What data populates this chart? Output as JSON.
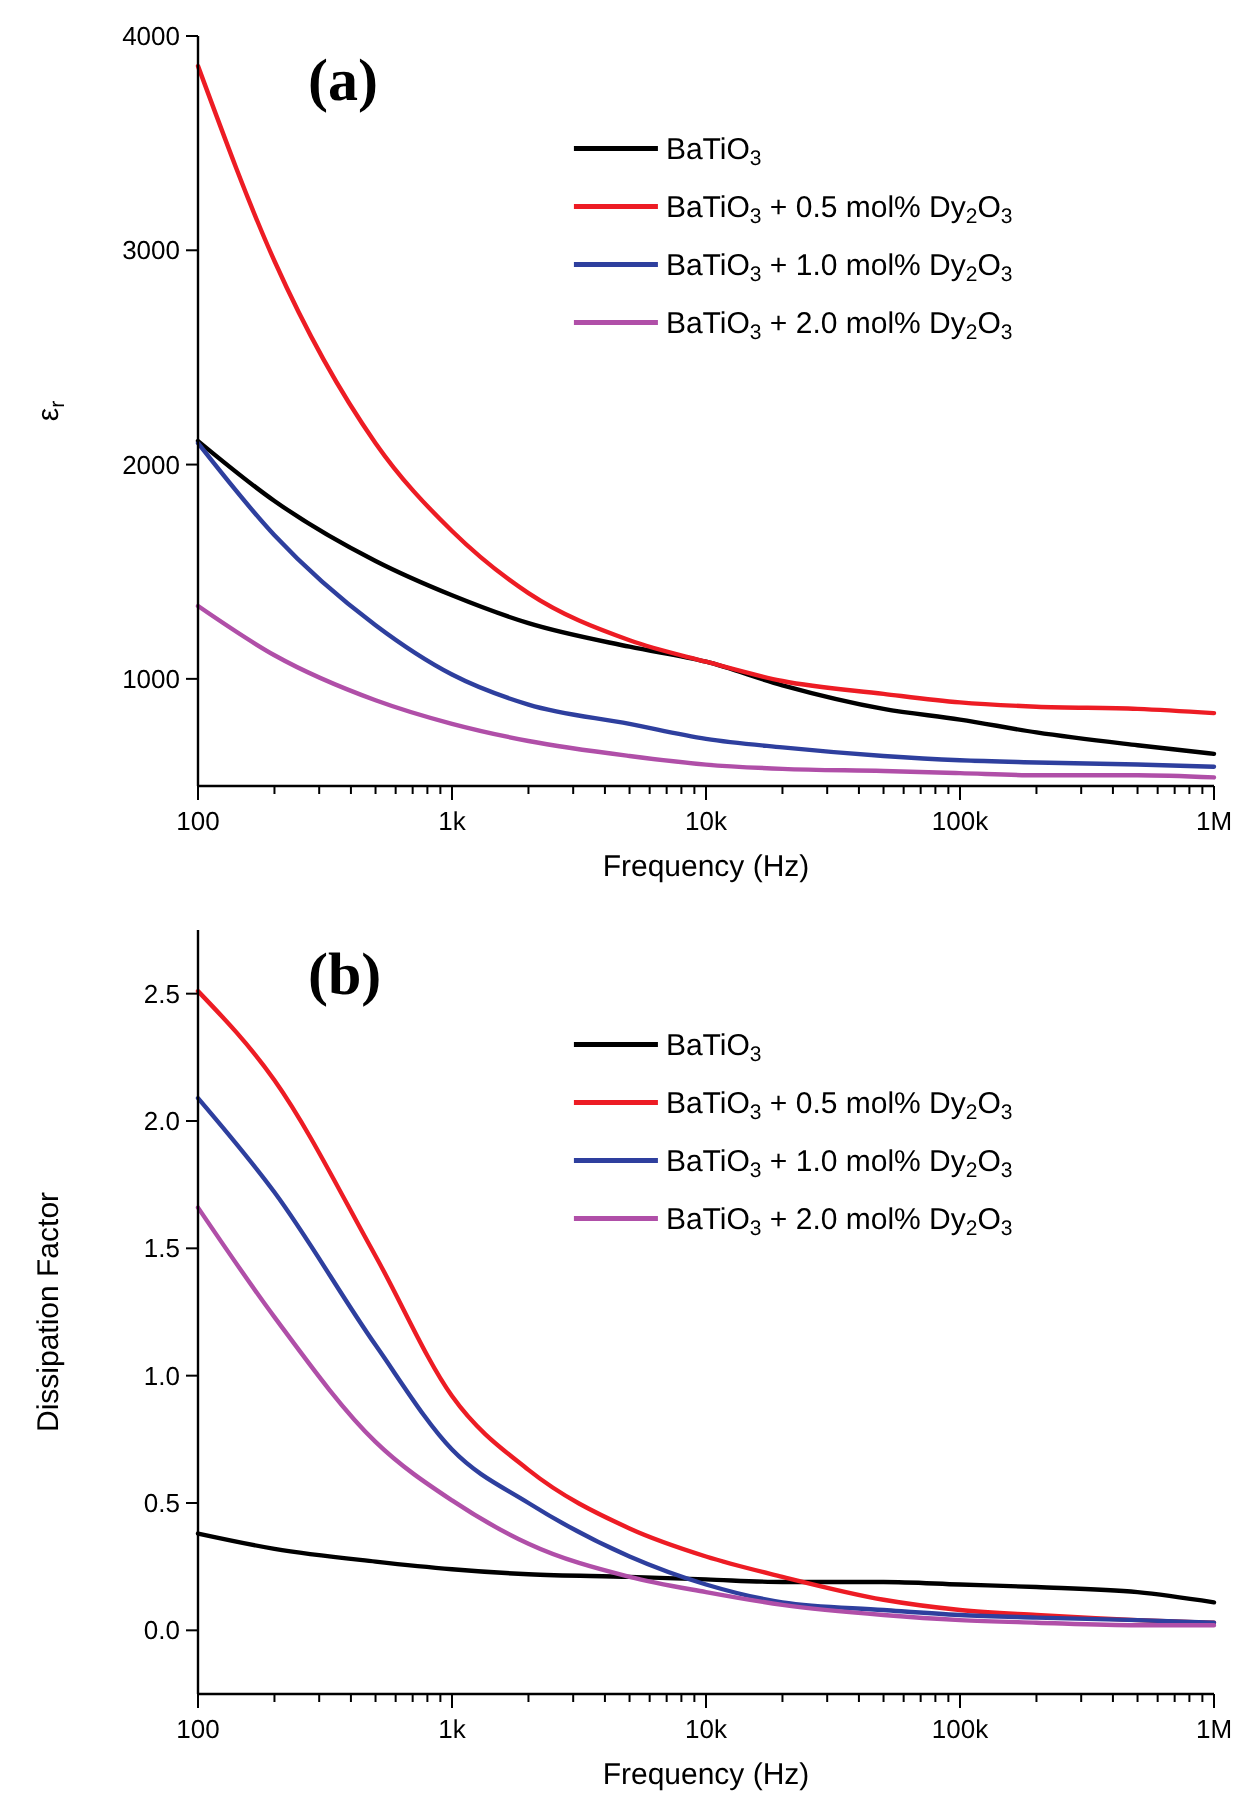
{
  "chart_data": [
    {
      "type": "line",
      "annotations": [
        "(a)"
      ],
      "xlabel": "Frequency (Hz)",
      "ylabel": "ε$_{r}$",
      "log": "x",
      "xlim": [
        100,
        1000000
      ],
      "xticks": [
        {
          "value": 100,
          "label": "100"
        },
        {
          "value": 1000,
          "label": "1k"
        },
        {
          "value": 10000,
          "label": "10k"
        },
        {
          "value": 100000,
          "label": "100k"
        },
        {
          "value": 1000000,
          "label": "1M"
        }
      ],
      "ylim": [
        500,
        4000
      ],
      "yticks": [
        1000,
        2000,
        3000,
        4000
      ],
      "legend": "top right",
      "x": [
        100,
        200,
        500,
        1000,
        2000,
        5000,
        10000,
        20000,
        50000,
        100000,
        200000,
        500000,
        1000000
      ],
      "series": [
        {
          "name": "BaTiO$_{3}$",
          "color": "#000000",
          "values": [
            2110,
            1830,
            1550,
            1390,
            1260,
            1150,
            1080,
            970,
            860,
            810,
            750,
            690,
            650
          ]
        },
        {
          "name": "BaTiO$_{3}$ + 0.5 mol% Dy$_{2}$O$_{3}$",
          "color": "#ed1c24",
          "values": [
            3860,
            2950,
            2100,
            1690,
            1400,
            1180,
            1080,
            990,
            930,
            890,
            870,
            860,
            840
          ]
        },
        {
          "name": "BaTiO$_{3}$ + 1.0 mol% Dy$_{2}$O$_{3}$",
          "color": "#2e3f9e",
          "values": [
            2100,
            1670,
            1250,
            1020,
            880,
            790,
            720,
            680,
            640,
            620,
            610,
            600,
            590
          ]
        },
        {
          "name": "BaTiO$_{3}$ + 2.0 mol% Dy$_{2}$O$_{3}$",
          "color": "#b04fa8",
          "values": [
            1340,
            1110,
            900,
            790,
            710,
            640,
            600,
            580,
            570,
            560,
            550,
            550,
            540
          ]
        }
      ]
    },
    {
      "type": "line",
      "annotations": [
        "(b)"
      ],
      "xlabel": "Frequency (Hz)",
      "ylabel": "Dissipation Factor",
      "log": "x",
      "xlim": [
        100,
        1000000
      ],
      "xticks": [
        {
          "value": 100,
          "label": "100"
        },
        {
          "value": 1000,
          "label": "1k"
        },
        {
          "value": 10000,
          "label": "10k"
        },
        {
          "value": 100000,
          "label": "100k"
        },
        {
          "value": 1000000,
          "label": "1M"
        }
      ],
      "ylim": [
        -0.25,
        2.75
      ],
      "yticks": [
        {
          "value": 0,
          "label": "0.0"
        },
        {
          "value": 0.5,
          "label": "0.5"
        },
        {
          "value": 1,
          "label": "1.0"
        },
        {
          "value": 1.5,
          "label": "1.5"
        },
        {
          "value": 2,
          "label": "2.0"
        },
        {
          "value": 2.5,
          "label": "2.5"
        }
      ],
      "legend": "top right",
      "x": [
        100,
        200,
        500,
        1000,
        2000,
        5000,
        10000,
        20000,
        50000,
        100000,
        200000,
        500000,
        1000000
      ],
      "series": [
        {
          "name": "BaTiO$_{3}$",
          "color": "#000000",
          "values": [
            0.38,
            0.32,
            0.27,
            0.24,
            0.22,
            0.21,
            0.2,
            0.19,
            0.19,
            0.18,
            0.17,
            0.15,
            0.11
          ]
        },
        {
          "name": "BaTiO$_{3}$ + 0.5 mol% Dy$_{2}$O$_{3}$",
          "color": "#ed1c24",
          "values": [
            2.51,
            2.16,
            1.47,
            0.92,
            0.63,
            0.4,
            0.29,
            0.21,
            0.12,
            0.08,
            0.06,
            0.04,
            0.03
          ]
        },
        {
          "name": "BaTiO$_{3}$ + 1.0 mol% Dy$_{2}$O$_{3}$",
          "color": "#2e3f9e",
          "values": [
            2.09,
            1.72,
            1.12,
            0.71,
            0.5,
            0.29,
            0.18,
            0.11,
            0.08,
            0.06,
            0.05,
            0.04,
            0.03
          ]
        },
        {
          "name": "BaTiO$_{3}$ + 2.0 mol% Dy$_{2}$O$_{3}$",
          "color": "#b04fa8",
          "values": [
            1.66,
            1.23,
            0.74,
            0.51,
            0.34,
            0.21,
            0.15,
            0.1,
            0.06,
            0.04,
            0.03,
            0.02,
            0.02
          ]
        }
      ]
    }
  ]
}
